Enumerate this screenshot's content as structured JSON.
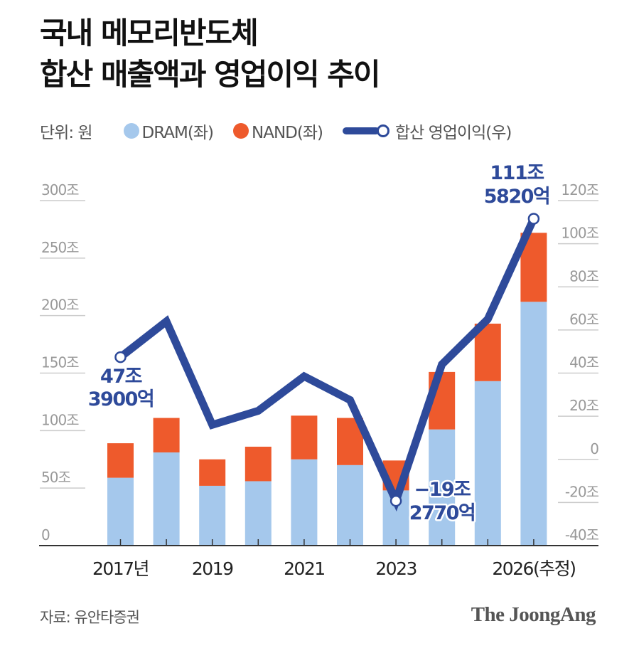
{
  "title": {
    "line1": "국내 메모리반도체",
    "line2": "합산 매출액과 영업이익 추이"
  },
  "legend": {
    "unit": "단위: 원",
    "items": [
      {
        "label": "DRAM(좌)",
        "color": "#A5C8EC",
        "icon": "circle-swatch"
      },
      {
        "label": "NAND(좌)",
        "color": "#EE5A2C",
        "icon": "circle-swatch"
      },
      {
        "label": "합산 영업이익(우)",
        "color": "#2E4A9A",
        "icon": "line-circle-swatch"
      }
    ]
  },
  "source": "자료: 유안타증권",
  "brand": "The JoongAng",
  "colors": {
    "dram": "#A5C8EC",
    "nand": "#EE5A2C",
    "line": "#2E4A9A",
    "axis_text": "#999999",
    "grid": "#cccccc",
    "baseline": "#333333"
  },
  "chart_data": {
    "type": "bar+line",
    "title": "국내 메모리반도체 합산 매출액과 영업이익 추이",
    "unit": "원",
    "categories": [
      "2017",
      "2018",
      "2019",
      "2020",
      "2021",
      "2022",
      "2023",
      "2024",
      "2025",
      "2026"
    ],
    "x_tick_labels": [
      {
        "index": 0,
        "label": "2017년"
      },
      {
        "index": 2,
        "label": "2019"
      },
      {
        "index": 4,
        "label": "2021"
      },
      {
        "index": 6,
        "label": "2023"
      },
      {
        "index": 9,
        "label": "2026(추정)"
      }
    ],
    "series": [
      {
        "name": "DRAM(좌)",
        "type": "stacked-bar",
        "axis": "left",
        "values": [
          59,
          81,
          52,
          56,
          75,
          70,
          48,
          101,
          143,
          212
        ]
      },
      {
        "name": "NAND(좌)",
        "type": "stacked-bar",
        "axis": "left",
        "values": [
          30,
          30,
          23,
          30,
          38,
          41,
          26,
          50,
          50,
          60
        ]
      },
      {
        "name": "합산 영업이익(우)",
        "type": "line",
        "axis": "right",
        "values": [
          47.39,
          64,
          16,
          22.5,
          38.5,
          27.5,
          -19.277,
          44,
          65,
          111.582
        ]
      }
    ],
    "left_axis": {
      "ylim": [
        0,
        300
      ],
      "ticks": [
        0,
        50,
        100,
        150,
        200,
        250,
        300
      ],
      "tick_labels": [
        "0",
        "50조",
        "100조",
        "150조",
        "200조",
        "250조",
        "300조"
      ]
    },
    "right_axis": {
      "ylim": [
        -40,
        120
      ],
      "ticks": [
        -40,
        -20,
        0,
        20,
        40,
        60,
        80,
        100,
        120
      ],
      "tick_labels": [
        "-40조",
        "-20조",
        "0",
        "20조",
        "40조",
        "60조",
        "80조",
        "100조",
        "120조"
      ]
    },
    "annotations": [
      {
        "index": 0,
        "line1": "47조",
        "line2": "3900억",
        "marker": "open-circle"
      },
      {
        "index": 6,
        "line1": "−19조",
        "line2": "2770억",
        "marker": "open-circle"
      },
      {
        "index": 9,
        "line1": "111조",
        "line2": "5820억",
        "marker": "open-circle"
      }
    ],
    "grid": "short underlines under axis labels only"
  }
}
